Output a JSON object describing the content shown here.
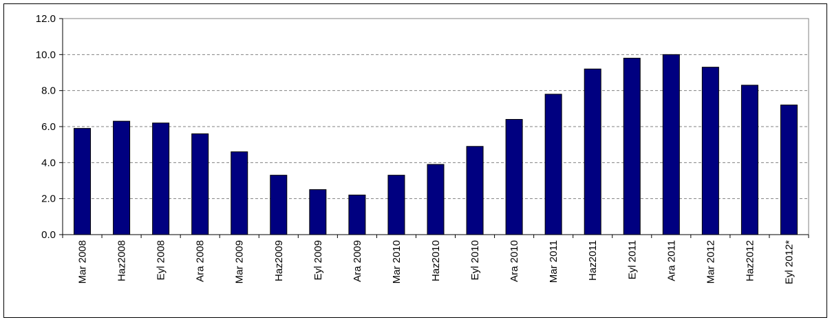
{
  "chart_data": {
    "type": "bar",
    "title": "",
    "xlabel": "",
    "ylabel": "",
    "ylim": [
      0,
      12
    ],
    "yticks": [
      "0.0",
      "2.0",
      "4.0",
      "6.0",
      "8.0",
      "10.0",
      "12.0"
    ],
    "grid": true,
    "legend": "none",
    "categories": [
      "Mar 2008",
      "Haz2008",
      "Eyl 2008",
      "Ara 2008",
      "Mar 2009",
      "Haz2009",
      "Eyl 2009",
      "Ara 2009",
      "Mar 2010",
      "Haz2010",
      "Eyl 2010",
      "Ara 2010",
      "Mar 2011",
      "Haz2011",
      "Eyl 2011",
      "Ara 2011",
      "Mar 2012",
      "Haz2012",
      "Eyl 2012*"
    ],
    "values": [
      5.9,
      6.3,
      6.2,
      5.6,
      4.6,
      3.3,
      2.5,
      2.2,
      3.3,
      3.9,
      4.9,
      6.4,
      7.8,
      9.2,
      9.8,
      10.0,
      9.3,
      8.3,
      7.2
    ],
    "colors": {
      "bar": "#000080",
      "grid": "#808080",
      "plot_border": "#808080"
    }
  }
}
